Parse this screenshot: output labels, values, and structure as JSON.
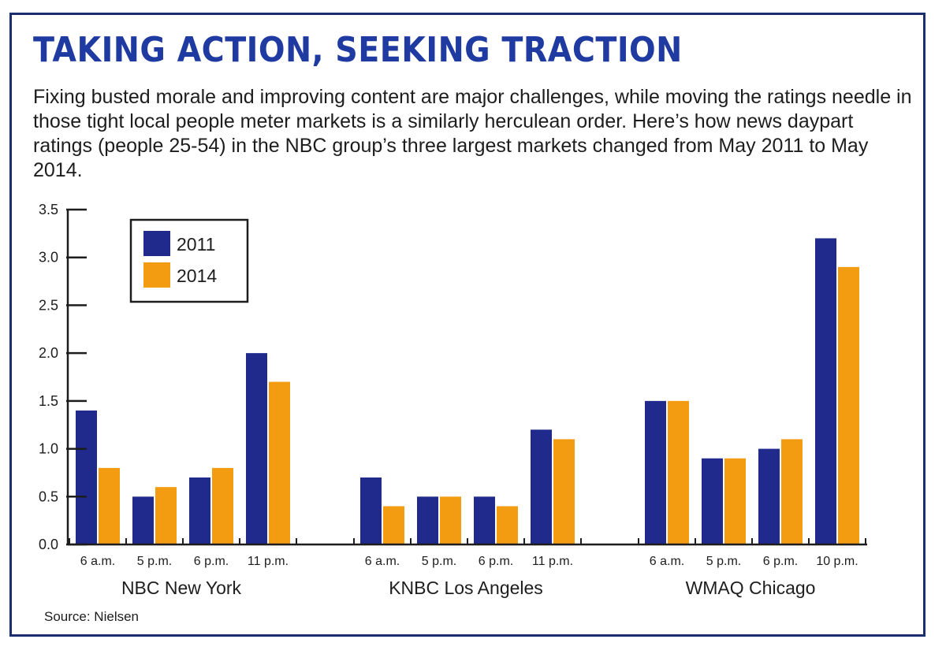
{
  "header": {
    "title": "TAKING ACTION, SEEKING TRACTION",
    "subtitle": "Fixing busted morale and improving content are major challenges, while moving the ratings needle in those tight local people meter markets is a similarly herculean order. Here’s how news daypart ratings (people 25-54) in the NBC group’s three largest markets changed from May 2011 to May 2014."
  },
  "footer": {
    "source": "Source: Nielsen"
  },
  "chart_data": {
    "type": "bar",
    "title": "TAKING ACTION, SEEKING TRACTION",
    "xlabel": "",
    "ylabel": "",
    "ylim": [
      0,
      3.5
    ],
    "yticks": [
      "0.0",
      "0.5",
      "1.0",
      "1.5",
      "2.0",
      "2.5",
      "3.0",
      "3.5"
    ],
    "grid": false,
    "legend": "top-left",
    "colors": {
      "2011": "#1f2a8c",
      "2014": "#f39c12"
    },
    "groups": [
      {
        "name": "NBC New York",
        "categories": [
          "6 a.m.",
          "5 p.m.",
          "6 p.m.",
          "11 p.m."
        ],
        "series": [
          {
            "name": "2011",
            "values": [
              1.4,
              0.5,
              0.7,
              2.0
            ]
          },
          {
            "name": "2014",
            "values": [
              0.8,
              0.6,
              0.8,
              1.7
            ]
          }
        ]
      },
      {
        "name": "KNBC Los Angeles",
        "categories": [
          "6 a.m.",
          "5 p.m.",
          "6 p.m.",
          "11 p.m."
        ],
        "series": [
          {
            "name": "2011",
            "values": [
              0.7,
              0.5,
              0.5,
              1.2
            ]
          },
          {
            "name": "2014",
            "values": [
              0.4,
              0.5,
              0.4,
              1.1
            ]
          }
        ]
      },
      {
        "name": "WMAQ Chicago",
        "categories": [
          "6 a.m.",
          "5 p.m.",
          "6 p.m.",
          "10 p.m."
        ],
        "series": [
          {
            "name": "2011",
            "values": [
              1.5,
              0.9,
              1.0,
              3.2
            ]
          },
          {
            "name": "2014",
            "values": [
              1.5,
              0.9,
              1.1,
              2.9
            ]
          }
        ]
      }
    ],
    "legend_entries": [
      "2011",
      "2014"
    ]
  }
}
